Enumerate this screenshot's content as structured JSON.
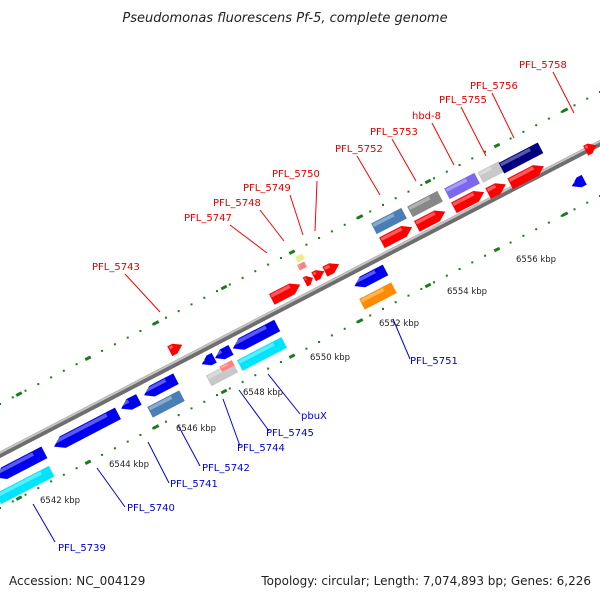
{
  "title": "Pseudomonas fluorescens Pf-5, complete genome",
  "footer": {
    "accession": "Accession: NC_004129",
    "summary": "Topology: circular; Length: 7,074,893 bp; Genes: 6,226"
  },
  "ticks": [
    "6542 kbp",
    "6544 kbp",
    "6546 kbp",
    "6548 kbp",
    "6550 kbp",
    "6552 kbp",
    "6554 kbp",
    "6556 kbp"
  ],
  "labels_forward": [
    "PFL_5743",
    "PFL_5747",
    "PFL_5748",
    "PFL_5749",
    "PFL_5750",
    "PFL_5752",
    "PFL_5753",
    "hbd-8",
    "PFL_5755",
    "PFL_5756",
    "PFL_5758"
  ],
  "labels_reverse": [
    "PFL_5739",
    "PFL_5740",
    "PFL_5741",
    "PFL_5742",
    "PFL_5744",
    "PFL_5745",
    "pbuX",
    "PFL_5751"
  ],
  "colors": {
    "forward": "#ff0000",
    "reverse": "#0000ee",
    "cyan": "#00e5ff",
    "steel": "#4a7fb5",
    "gray": "#888888",
    "navy": "#000080",
    "lavender": "#7b68ee",
    "orange": "#ff8c00",
    "backbone": "#888888"
  }
}
